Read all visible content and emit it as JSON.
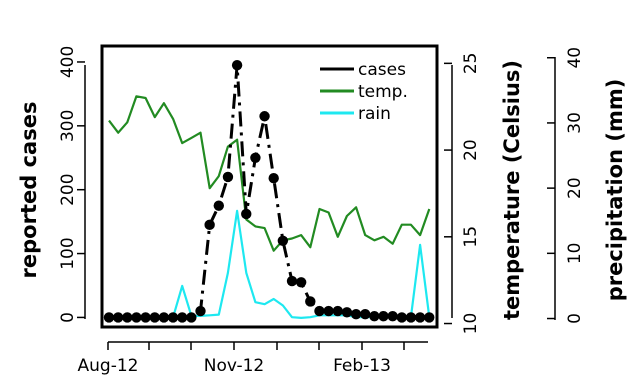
{
  "chart_data": {
    "type": "line",
    "x_ticks": [
      "Aug-12",
      "Nov-12",
      "Feb-13"
    ],
    "axes": {
      "left": {
        "label": "reported cases",
        "ticks": [
          0,
          100,
          200,
          300,
          400
        ],
        "range": [
          -15,
          425
        ]
      },
      "right1": {
        "label": "temperature (Celsius)",
        "ticks": [
          10,
          15,
          20,
          25
        ],
        "range": [
          9.8,
          26.0
        ]
      },
      "right2": {
        "label": "precipitation (mm)",
        "ticks": [
          0,
          10,
          20,
          30,
          40
        ],
        "range": [
          -1.3,
          41.8
        ]
      }
    },
    "legend": {
      "position": "top-right",
      "entries": [
        "cases",
        "temp.",
        "rain"
      ]
    },
    "series": [
      {
        "name": "cases",
        "axis": "left",
        "color": "#000000",
        "style": "dashed-with-points",
        "values": [
          0,
          0,
          0,
          0,
          0,
          0,
          0,
          0,
          0,
          0,
          10,
          145,
          175,
          220,
          395,
          162,
          250,
          315,
          218,
          120,
          57,
          55,
          25,
          10,
          10,
          10,
          8,
          5,
          5,
          2,
          2,
          2,
          0,
          0,
          0,
          0
        ]
      },
      {
        "name": "temp.",
        "axis": "right1",
        "color": "#228b22",
        "style": "solid",
        "values": [
          21.7,
          21.0,
          21.6,
          23.1,
          23.0,
          21.9,
          22.7,
          21.8,
          20.4,
          20.7,
          21.0,
          17.8,
          18.5,
          20.2,
          20.6,
          16.0,
          15.6,
          15.5,
          14.2,
          14.8,
          14.9,
          15.1,
          14.4,
          16.6,
          16.4,
          15.0,
          16.2,
          16.7,
          15.1,
          14.8,
          15.0,
          14.6,
          15.7,
          15.7,
          15.1,
          16.6
        ]
      },
      {
        "name": "rain",
        "axis": "right2",
        "color": "#1ee8f0",
        "style": "solid",
        "values": [
          0.2,
          0.2,
          0.2,
          0.2,
          0.2,
          0.2,
          0.2,
          0.2,
          5.0,
          0.4,
          0.4,
          0.5,
          0.6,
          7.0,
          16.5,
          7.0,
          2.5,
          2.2,
          3.0,
          2.0,
          0.2,
          0.1,
          0.2,
          0.5,
          0.5,
          0.5,
          0.5,
          0.2,
          0.2,
          0.2,
          0.2,
          0.2,
          0.2,
          0.2,
          11.3,
          0.2
        ]
      }
    ]
  }
}
